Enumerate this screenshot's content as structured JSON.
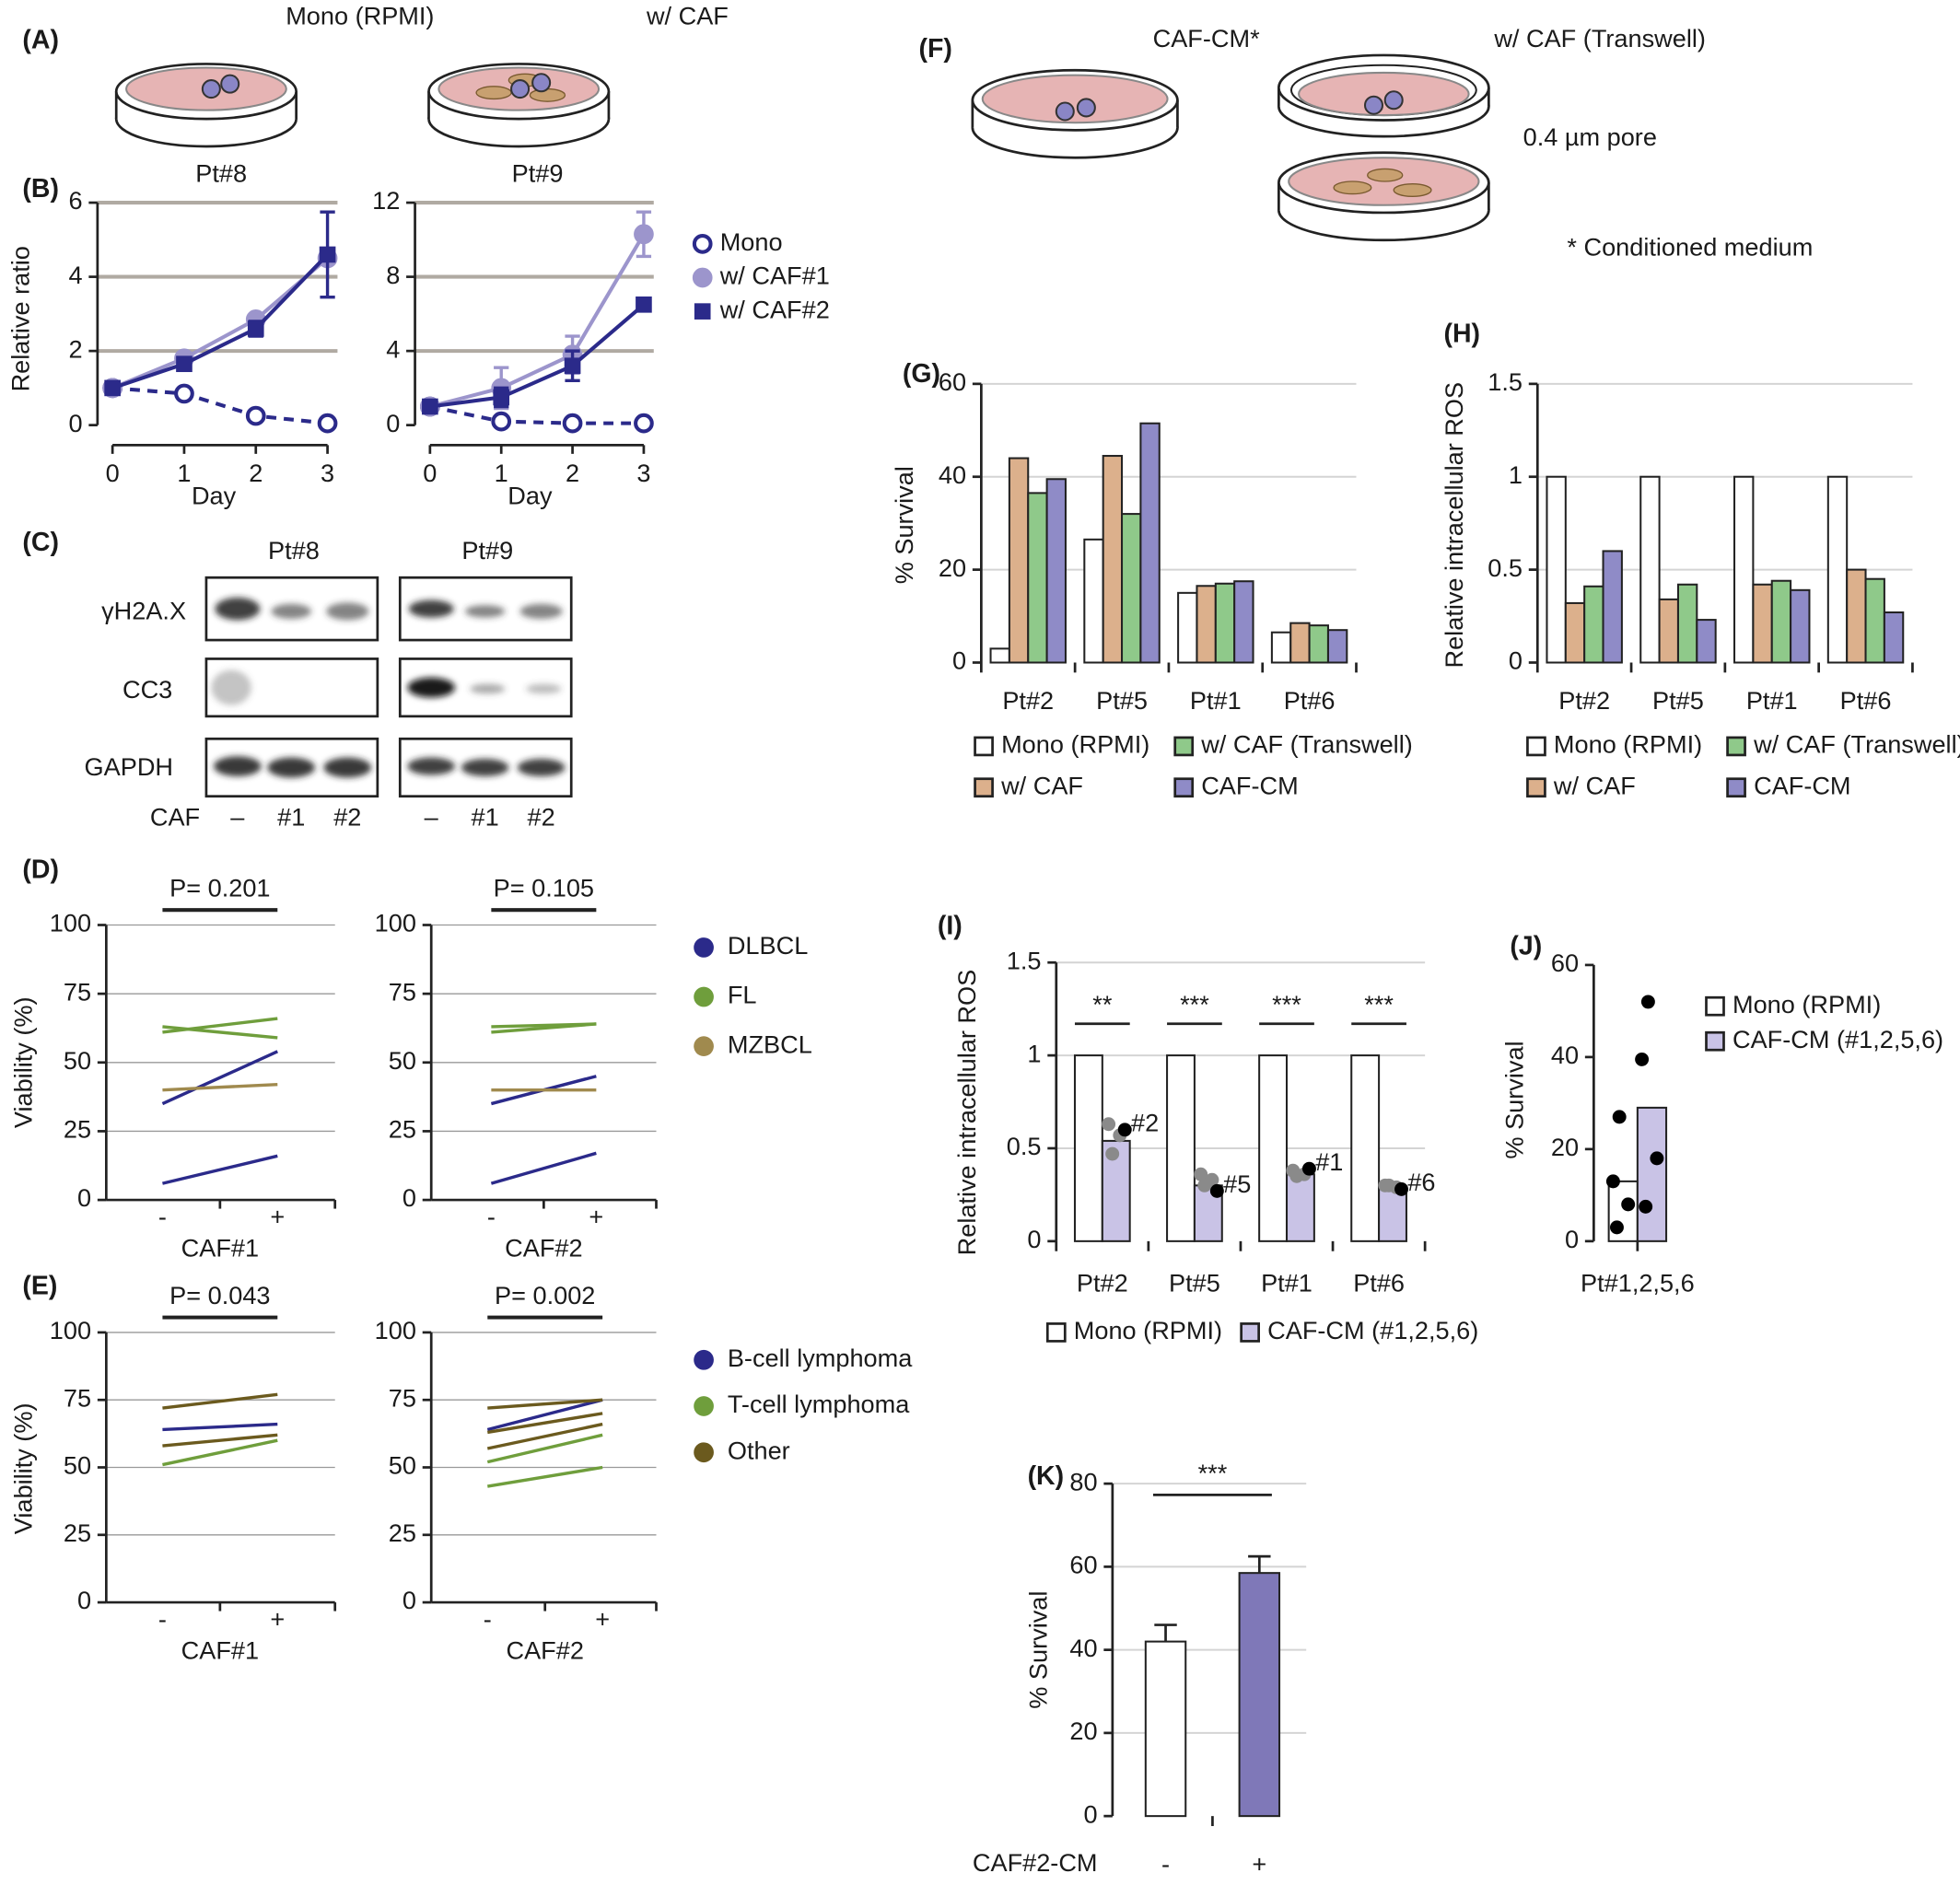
{
  "panel_labels": [
    "(A)",
    "(B)",
    "(C)",
    "(D)",
    "(E)",
    "(F)",
    "(G)",
    "(H)",
    "(I)",
    "(J)",
    "(K)"
  ],
  "schematic": {
    "a_labels": [
      "Mono (RPMI)",
      "w/ CAF"
    ],
    "f_labels": [
      "CAF-CM*",
      "w/ CAF (Transwell)"
    ],
    "pore": "0.4 µm pore",
    "footnote": "* Conditioned medium"
  },
  "blot": {
    "patients": [
      "Pt#8",
      "Pt#9"
    ],
    "markers": [
      "γH2A.X",
      "CC3",
      "GAPDH"
    ],
    "lane_title": "CAF",
    "lanes": [
      "–",
      "#1",
      "#2",
      "–",
      "#1",
      "#2"
    ]
  },
  "chart_data": [
    {
      "type": "line",
      "title": "Pt#8",
      "x_label": "Day",
      "y_label": "Relative ratio",
      "x": [
        0,
        1,
        2,
        3
      ],
      "xlim": [
        0,
        3
      ],
      "xticks": [
        0,
        1,
        2,
        3
      ],
      "ylim": [
        0,
        6
      ],
      "yticks": [
        0,
        2,
        4,
        6
      ],
      "grid": true,
      "legend": "right",
      "series": [
        {
          "name": "Mono",
          "color": "#2b2a8a",
          "marker": "open-circle",
          "dashed": true,
          "values": [
            1,
            0.85,
            0.25,
            0.05
          ]
        },
        {
          "name": "w/ CAF#1",
          "color": "#9c95cc",
          "marker": "circle",
          "values": [
            1,
            1.8,
            2.85,
            4.5
          ]
        },
        {
          "name": "w/ CAF#2",
          "color": "#2b2a8a",
          "marker": "square",
          "values": [
            1,
            1.65,
            2.6,
            4.6
          ],
          "errors": [
            0,
            0.15,
            0.2,
            1.15
          ]
        }
      ]
    },
    {
      "type": "line",
      "title": "Pt#9",
      "x_label": "Day",
      "x": [
        0,
        1,
        2,
        3
      ],
      "xlim": [
        0,
        3
      ],
      "xticks": [
        0,
        1,
        2,
        3
      ],
      "ylim": [
        0,
        12
      ],
      "yticks": [
        0,
        4,
        8,
        12
      ],
      "grid": true,
      "series": [
        {
          "color": "#2b2a8a",
          "marker": "open-circle",
          "dashed": true,
          "values": [
            1,
            0.2,
            0.1,
            0.1
          ]
        },
        {
          "color": "#9c95cc",
          "marker": "circle",
          "values": [
            1,
            2,
            3.8,
            10.3
          ],
          "errors": [
            0,
            1.1,
            1,
            1.2
          ]
        },
        {
          "color": "#2b2a8a",
          "marker": "square",
          "values": [
            1,
            1.5,
            3.2,
            6.5
          ],
          "errors": [
            0,
            0.5,
            0.8,
            0
          ]
        }
      ]
    },
    {
      "type": "line",
      "categories": [
        "-",
        "+"
      ],
      "x_label": "CAF#1",
      "y_label": "Viability (%)",
      "ylim": [
        0,
        100
      ],
      "yticks": [
        0,
        25,
        50,
        75,
        100
      ],
      "grid": true,
      "annotation": "P= 0.201",
      "legend": "right",
      "series": [
        {
          "name": "DLBCL",
          "color": "#2b2a8a",
          "values": [
            [
              35,
              54
            ],
            [
              6,
              16
            ]
          ]
        },
        {
          "name": "FL",
          "color": "#6f9e3c",
          "values": [
            [
              63,
              59
            ],
            [
              61,
              66
            ]
          ]
        },
        {
          "name": "MZBCL",
          "color": "#a08a4e",
          "values": [
            [
              40,
              42
            ]
          ]
        }
      ]
    },
    {
      "type": "line",
      "categories": [
        "-",
        "+"
      ],
      "x_label": "CAF#2",
      "ylim": [
        0,
        100
      ],
      "yticks": [
        0,
        25,
        50,
        75,
        100
      ],
      "grid": true,
      "annotation": "P= 0.105",
      "series": [
        {
          "color": "#2b2a8a",
          "values": [
            [
              35,
              45
            ],
            [
              6,
              17
            ]
          ]
        },
        {
          "color": "#6f9e3c",
          "values": [
            [
              63,
              64
            ],
            [
              61,
              64
            ]
          ]
        },
        {
          "color": "#a08a4e",
          "values": [
            [
              40,
              40
            ]
          ]
        }
      ]
    },
    {
      "type": "line",
      "categories": [
        "-",
        "+"
      ],
      "x_label": "CAF#1",
      "y_label": "Viability (%)",
      "ylim": [
        0,
        100
      ],
      "yticks": [
        0,
        25,
        50,
        75,
        100
      ],
      "grid": true,
      "annotation": "P= 0.043",
      "legend": "right",
      "series": [
        {
          "name": "B-cell lymphoma",
          "color": "#2b2a8a",
          "values": [
            [
              64,
              66
            ]
          ]
        },
        {
          "name": "T-cell lymphoma",
          "color": "#6f9e3c",
          "values": [
            [
              51,
              60
            ]
          ]
        },
        {
          "name": "Other",
          "color": "#6b5a1e",
          "values": [
            [
              72,
              77
            ],
            [
              58,
              62
            ]
          ]
        }
      ]
    },
    {
      "type": "line",
      "categories": [
        "-",
        "+"
      ],
      "x_label": "CAF#2",
      "ylim": [
        0,
        100
      ],
      "yticks": [
        0,
        25,
        50,
        75,
        100
      ],
      "grid": true,
      "annotation": "P= 0.002",
      "series": [
        {
          "color": "#2b2a8a",
          "values": [
            [
              64,
              75
            ]
          ]
        },
        {
          "color": "#6f9e3c",
          "values": [
            [
              52,
              62
            ],
            [
              43,
              50
            ]
          ]
        },
        {
          "color": "#6b5a1e",
          "values": [
            [
              72,
              75
            ],
            [
              63,
              70
            ],
            [
              57,
              66
            ]
          ]
        }
      ]
    },
    {
      "type": "bar",
      "categories": [
        "Pt#2",
        "Pt#5",
        "Pt#1",
        "Pt#6"
      ],
      "y_label": "% Survival",
      "ylim": [
        0,
        60
      ],
      "yticks": [
        0,
        20,
        40,
        60
      ],
      "grid": true,
      "legend": "bottom",
      "series": [
        {
          "name": "Mono (RPMI)",
          "color": "#ffffff",
          "values": [
            3,
            26.5,
            15,
            6.5
          ]
        },
        {
          "name": "w/ CAF",
          "color": "#dcb08c",
          "values": [
            44,
            44.5,
            16.5,
            8.5
          ]
        },
        {
          "name": "w/ CAF (Transwell)",
          "color": "#8fc98a",
          "values": [
            36.5,
            32,
            17,
            8
          ]
        },
        {
          "name": "CAF-CM",
          "color": "#8f8bc7",
          "values": [
            39.5,
            51.5,
            17.5,
            7
          ]
        }
      ]
    },
    {
      "type": "bar",
      "categories": [
        "Pt#2",
        "Pt#5",
        "Pt#1",
        "Pt#6"
      ],
      "y_label": "Relative intracellular ROS",
      "ylim": [
        0,
        1.5
      ],
      "yticks": [
        0,
        0.5,
        1,
        1.5
      ],
      "grid": true,
      "legend": "bottom",
      "series": [
        {
          "name": "Mono (RPMI)",
          "color": "#ffffff",
          "values": [
            1,
            1,
            1,
            1
          ]
        },
        {
          "name": "w/ CAF",
          "color": "#dcb08c",
          "values": [
            0.32,
            0.34,
            0.42,
            0.5
          ]
        },
        {
          "name": "w/ CAF (Transwell)",
          "color": "#8fc98a",
          "values": [
            0.41,
            0.42,
            0.44,
            0.45
          ]
        },
        {
          "name": "CAF-CM",
          "color": "#8f8bc7",
          "values": [
            0.6,
            0.23,
            0.39,
            0.27
          ]
        }
      ]
    },
    {
      "type": "bar",
      "categories": [
        "Pt#2",
        "Pt#5",
        "Pt#1",
        "Pt#6"
      ],
      "y_label": "Relative intracellular ROS",
      "ylim": [
        0,
        1.5
      ],
      "yticks": [
        0,
        0.5,
        1,
        1.5
      ],
      "grid": true,
      "legend": "bottom",
      "significance": [
        "**",
        "***",
        "***",
        "***"
      ],
      "series": [
        {
          "name": "Mono (RPMI)",
          "color": "#ffffff",
          "values": [
            1,
            1,
            1,
            1
          ]
        },
        {
          "name": "CAF-CM (#1,2,5,6)",
          "color": "#c9c3e6",
          "values": [
            0.54,
            0.3,
            0.36,
            0.29
          ],
          "points": [
            [
              0.63,
              0.57,
              0.47,
              0.6
            ],
            [
              0.36,
              0.33,
              0.3,
              0.27
            ],
            [
              0.38,
              0.36,
              0.35,
              0.39
            ],
            [
              0.3,
              0.29,
              0.3,
              0.28
            ]
          ],
          "point_colors": [
            "#8a8a8a",
            "#8a8a8a",
            "#8a8a8a",
            "#000000"
          ],
          "point_labels": [
            "#2",
            "#5",
            "#1",
            "#6"
          ]
        }
      ]
    },
    {
      "type": "bar",
      "categories": [
        "Pt#1,2,5,6"
      ],
      "y_label": "% Survival",
      "ylim": [
        0,
        60
      ],
      "yticks": [
        0,
        20,
        40,
        60
      ],
      "grid": false,
      "legend": "right",
      "series": [
        {
          "name": "Mono (RPMI)",
          "color": "#ffffff",
          "values": [
            13
          ],
          "points": [
            [
              27,
              13,
              8,
              3
            ]
          ],
          "point_colors": [
            "#000000",
            "#000000",
            "#000000",
            "#000000"
          ]
        },
        {
          "name": "CAF-CM (#1,2,5,6)",
          "color": "#c9c3e6",
          "values": [
            29
          ],
          "points": [
            [
              52,
              39.5,
              18,
              7.5
            ]
          ],
          "point_colors": [
            "#000000",
            "#000000",
            "#000000",
            "#000000"
          ]
        }
      ]
    },
    {
      "type": "bar",
      "categories": [
        "-",
        "+"
      ],
      "x_label": "CAF#2-CM",
      "y_label": "% Survival",
      "ylim": [
        0,
        80
      ],
      "yticks": [
        0,
        20,
        40,
        60,
        80
      ],
      "grid": true,
      "significance": "***",
      "values": [
        42,
        58.5
      ],
      "errors": [
        4,
        4
      ],
      "colors": [
        "#ffffff",
        "#7f78b8"
      ]
    }
  ]
}
